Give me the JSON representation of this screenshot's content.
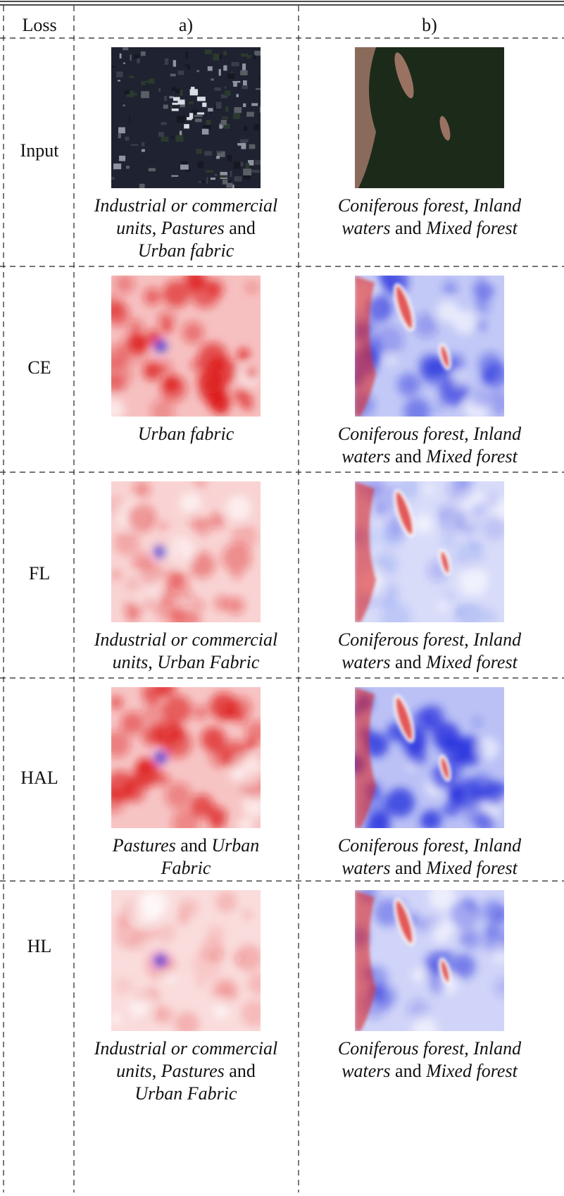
{
  "header": {
    "loss": "Loss",
    "a": "a)",
    "b": "b)"
  },
  "rows": [
    {
      "loss": "Input",
      "a": {
        "caption": [
          [
            {
              "text": "Industrial or commercial",
              "italic": true
            }
          ],
          [
            {
              "text": "units",
              "italic": true
            },
            {
              "text": ", "
            },
            {
              "text": "Pastures",
              "italic": true
            },
            {
              "text": " and"
            }
          ],
          [
            {
              "text": "Urban fabric",
              "italic": true
            }
          ]
        ]
      },
      "b": {
        "caption": [
          [
            {
              "text": "Coniferous forest",
              "italic": true
            },
            {
              "text": ", "
            },
            {
              "text": "Inland",
              "italic": true
            }
          ],
          [
            {
              "text": "waters",
              "italic": true
            },
            {
              "text": " and "
            },
            {
              "text": "Mixed forest",
              "italic": true
            }
          ]
        ]
      }
    },
    {
      "loss": "CE",
      "a": {
        "caption": [
          [
            {
              "text": "Urban fabric",
              "italic": true
            }
          ]
        ]
      },
      "b": {
        "caption": [
          [
            {
              "text": "Coniferous forest",
              "italic": true
            },
            {
              "text": ", "
            },
            {
              "text": "Inland",
              "italic": true
            }
          ],
          [
            {
              "text": "waters",
              "italic": true
            },
            {
              "text": " and "
            },
            {
              "text": "Mixed forest",
              "italic": true
            }
          ]
        ]
      }
    },
    {
      "loss": "FL",
      "a": {
        "caption": [
          [
            {
              "text": "Industrial or commercial",
              "italic": true
            }
          ],
          [
            {
              "text": "units",
              "italic": true
            },
            {
              "text": ", "
            },
            {
              "text": "Urban Fabric",
              "italic": true
            }
          ]
        ]
      },
      "b": {
        "caption": [
          [
            {
              "text": "Coniferous forest",
              "italic": true
            },
            {
              "text": ", "
            },
            {
              "text": "Inland",
              "italic": true
            }
          ],
          [
            {
              "text": "waters",
              "italic": true
            },
            {
              "text": " and "
            },
            {
              "text": "Mixed forest",
              "italic": true
            }
          ]
        ]
      }
    },
    {
      "loss": "HAL",
      "a": {
        "caption": [
          [
            {
              "text": "Pastures",
              "italic": true
            },
            {
              "text": " and "
            },
            {
              "text": "Urban",
              "italic": true
            }
          ],
          [
            {
              "text": "Fabric",
              "italic": true
            }
          ]
        ]
      },
      "b": {
        "caption": [
          [
            {
              "text": "Coniferous forest",
              "italic": true
            },
            {
              "text": ", "
            },
            {
              "text": "Inland",
              "italic": true
            }
          ],
          [
            {
              "text": "waters",
              "italic": true
            },
            {
              "text": " and "
            },
            {
              "text": "Mixed forest",
              "italic": true
            }
          ]
        ]
      }
    },
    {
      "loss": "HL",
      "a": {
        "caption": [
          [
            {
              "text": "Industrial or commercial",
              "italic": true
            }
          ],
          [
            {
              "text": "units",
              "italic": true
            },
            {
              "text": ", "
            },
            {
              "text": "Pastures",
              "italic": true
            },
            {
              "text": " and"
            }
          ],
          [
            {
              "text": "Urban Fabric",
              "italic": true
            }
          ]
        ]
      },
      "b": {
        "caption": [
          [
            {
              "text": "Coniferous forest",
              "italic": true
            },
            {
              "text": ", "
            },
            {
              "text": "Inland",
              "italic": true
            }
          ],
          [
            {
              "text": "waters",
              "italic": true
            },
            {
              "text": " and "
            },
            {
              "text": "Mixed forest",
              "italic": true
            }
          ]
        ]
      }
    }
  ]
}
